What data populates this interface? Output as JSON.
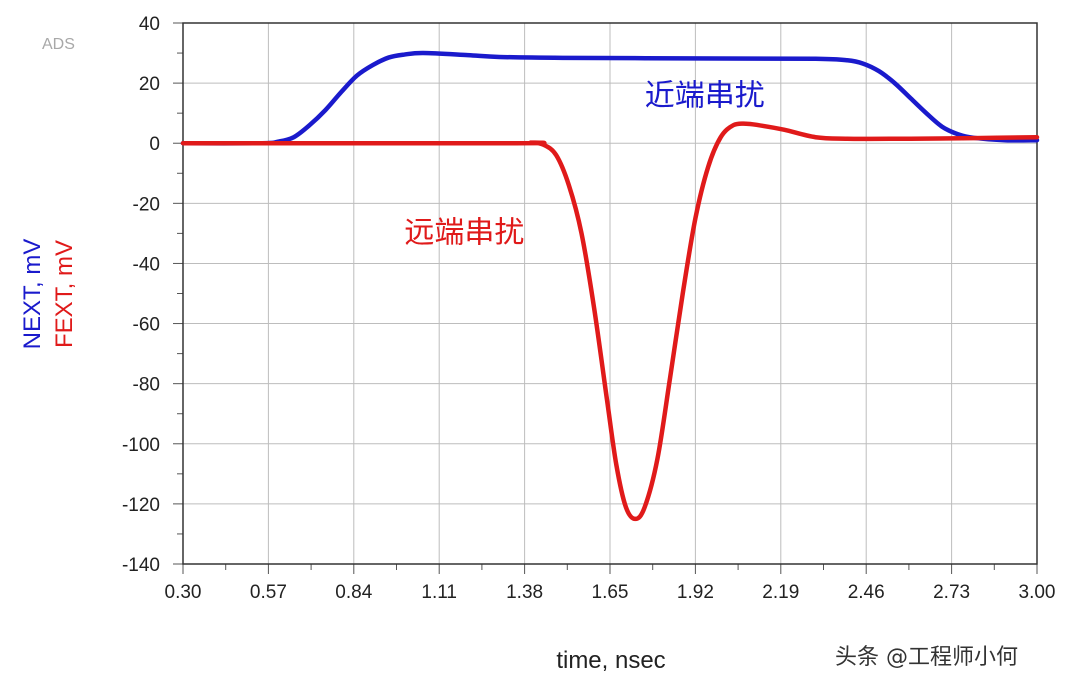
{
  "chart_data": {
    "type": "line",
    "brand": "ADS",
    "xlabel": "time, nsec",
    "ylabels": [
      {
        "text": "NEXT, mV",
        "color": "#1a1acc"
      },
      {
        "text": "FEXT, mV",
        "color": "#e01a1a"
      }
    ],
    "xlim": [
      0.3,
      3.0
    ],
    "ylim": [
      -140,
      40
    ],
    "xticks": [
      "0.30",
      "0.57",
      "0.84",
      "1.11",
      "1.38",
      "1.65",
      "1.92",
      "2.19",
      "2.46",
      "2.73",
      "3.00"
    ],
    "yticks": [
      "40",
      "20",
      "0",
      "-20",
      "-40",
      "-60",
      "-80",
      "-100",
      "-120",
      "-140"
    ],
    "grid": true,
    "series": [
      {
        "name": "近端串扰",
        "color": "#1a1acc",
        "points": [
          [
            0.3,
            0
          ],
          [
            0.55,
            0
          ],
          [
            0.6,
            0.5
          ],
          [
            0.65,
            2
          ],
          [
            0.7,
            6
          ],
          [
            0.75,
            11
          ],
          [
            0.8,
            17
          ],
          [
            0.85,
            22.5
          ],
          [
            0.9,
            26
          ],
          [
            0.95,
            28.5
          ],
          [
            1.0,
            29.5
          ],
          [
            1.06,
            30
          ],
          [
            1.2,
            29.3
          ],
          [
            1.3,
            28.7
          ],
          [
            1.5,
            28.4
          ],
          [
            2.0,
            28.2
          ],
          [
            2.3,
            28.1
          ],
          [
            2.4,
            27.6
          ],
          [
            2.45,
            26.5
          ],
          [
            2.5,
            24
          ],
          [
            2.55,
            20
          ],
          [
            2.6,
            15
          ],
          [
            2.65,
            10
          ],
          [
            2.7,
            5.5
          ],
          [
            2.75,
            3
          ],
          [
            2.8,
            1.8
          ],
          [
            2.9,
            1
          ],
          [
            3.0,
            1
          ]
        ],
        "annotation": {
          "text": "近端串扰",
          "x": 1.76,
          "y": 12.5
        }
      },
      {
        "name": "远端串扰",
        "color": "#e01a1a",
        "points": [
          [
            0.3,
            0
          ],
          [
            1.35,
            0
          ],
          [
            1.4,
            0.2
          ],
          [
            1.44,
            -0.5
          ],
          [
            1.48,
            -4
          ],
          [
            1.52,
            -14
          ],
          [
            1.56,
            -30
          ],
          [
            1.6,
            -55
          ],
          [
            1.64,
            -85
          ],
          [
            1.67,
            -107
          ],
          [
            1.7,
            -121
          ],
          [
            1.73,
            -125
          ],
          [
            1.76,
            -121
          ],
          [
            1.8,
            -105
          ],
          [
            1.84,
            -78
          ],
          [
            1.88,
            -50
          ],
          [
            1.92,
            -25
          ],
          [
            1.96,
            -8
          ],
          [
            2.0,
            2
          ],
          [
            2.04,
            6
          ],
          [
            2.08,
            6.5
          ],
          [
            2.12,
            6
          ],
          [
            2.2,
            4.5
          ],
          [
            2.3,
            2
          ],
          [
            2.4,
            1.5
          ],
          [
            2.6,
            1.5
          ],
          [
            2.8,
            1.7
          ],
          [
            3.0,
            2
          ]
        ],
        "annotation": {
          "text": "远端串扰",
          "x": 1.0,
          "y": -33
        }
      }
    ]
  },
  "watermark": "头条 @工程师小何"
}
